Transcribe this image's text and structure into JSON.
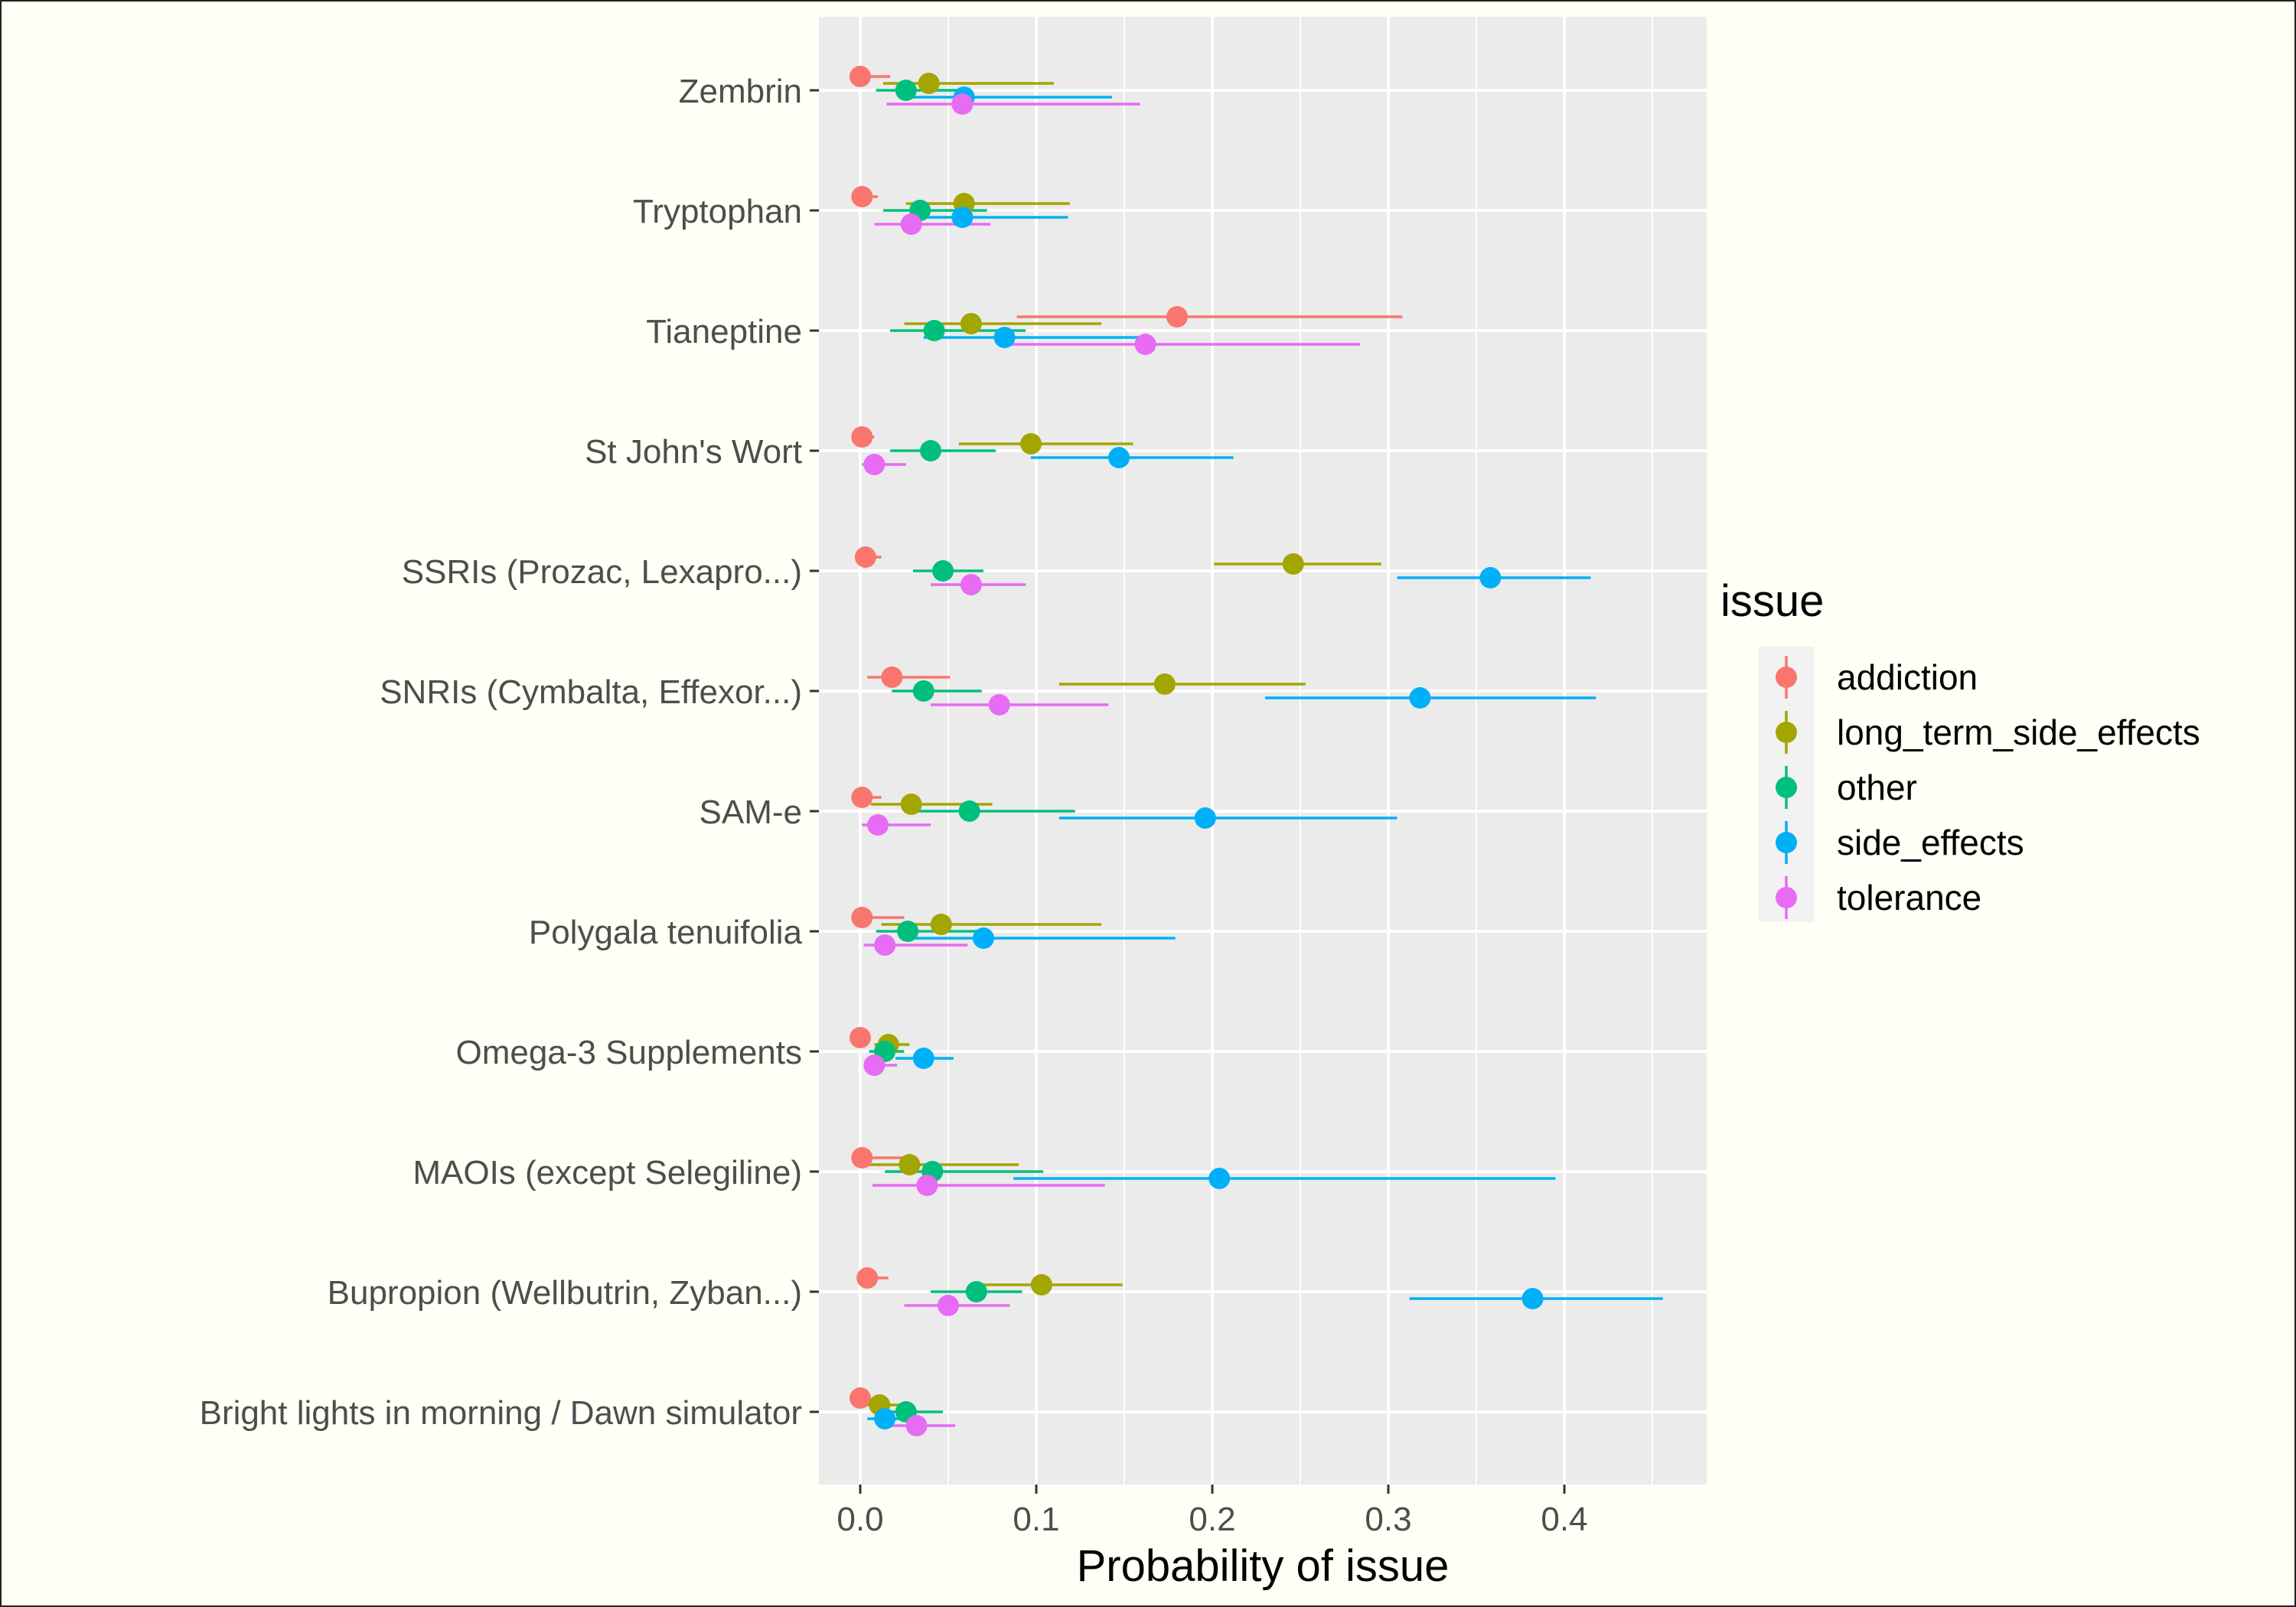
{
  "chart_data": {
    "type": "scatter",
    "title": "",
    "xlabel": "Probability of issue",
    "ylabel": "",
    "xlim": [
      -0.02,
      0.48
    ],
    "x_ticks": [
      0.0,
      0.1,
      0.2,
      0.3,
      0.4
    ],
    "x_tick_labels": [
      "0.0",
      "0.1",
      "0.2",
      "0.3",
      "0.4"
    ],
    "grid": true,
    "legend_position": "right",
    "legend_title": "issue",
    "categories": [
      "Bright lights in morning / Dawn simulator",
      "Bupropion (Wellbutrin, Zyban...)",
      "MAOIs (except Selegiline)",
      "Omega-3 Supplements",
      "Polygala tenuifolia",
      "SAM-e",
      "SNRIs (Cymbalta, Effexor...)",
      "SSRIs (Prozac, Lexapro...)",
      "St John's Wort",
      "Tianeptine",
      "Tryptophan",
      "Zembrin"
    ],
    "series": [
      {
        "name": "addiction",
        "color": "#F8766D",
        "values": [
          0.0,
          0.004,
          0.001,
          0.0,
          0.001,
          0.001,
          0.018,
          0.003,
          0.001,
          0.18,
          0.001,
          0.0
        ],
        "lower": [
          0.0,
          0.0,
          0.0,
          0.0,
          0.0,
          0.0,
          0.004,
          0.0,
          0.0,
          0.089,
          0.0,
          0.0
        ],
        "upper": [
          0.005,
          0.016,
          0.026,
          0.006,
          0.025,
          0.012,
          0.051,
          0.012,
          0.008,
          0.308,
          0.01,
          0.017
        ]
      },
      {
        "name": "long_term_side_effects",
        "color": "#A3A500",
        "values": [
          0.011,
          0.103,
          0.028,
          0.016,
          0.046,
          0.029,
          0.173,
          0.246,
          0.097,
          0.063,
          0.059,
          0.039
        ],
        "lower": [
          0.002,
          0.068,
          0.004,
          0.008,
          0.012,
          0.006,
          0.113,
          0.201,
          0.056,
          0.025,
          0.026,
          0.013
        ],
        "upper": [
          0.025,
          0.149,
          0.09,
          0.028,
          0.137,
          0.075,
          0.253,
          0.296,
          0.155,
          0.137,
          0.119,
          0.11
        ]
      },
      {
        "name": "other",
        "color": "#00BF7D",
        "values": [
          0.026,
          0.066,
          0.041,
          0.014,
          0.027,
          0.062,
          0.036,
          0.047,
          0.04,
          0.042,
          0.034,
          0.026
        ],
        "lower": [
          0.008,
          0.04,
          0.014,
          0.005,
          0.009,
          0.025,
          0.018,
          0.03,
          0.017,
          0.017,
          0.013,
          0.009
        ],
        "upper": [
          0.047,
          0.092,
          0.104,
          0.025,
          0.067,
          0.122,
          0.069,
          0.07,
          0.077,
          0.094,
          0.072,
          0.062
        ]
      },
      {
        "name": "side_effects",
        "color": "#00B0F6",
        "values": [
          0.014,
          0.382,
          0.204,
          0.036,
          0.07,
          0.196,
          0.318,
          0.358,
          0.147,
          0.082,
          0.058,
          0.059
        ],
        "lower": [
          0.004,
          0.312,
          0.087,
          0.02,
          0.028,
          0.113,
          0.23,
          0.305,
          0.097,
          0.036,
          0.025,
          0.023
        ],
        "upper": [
          0.03,
          0.456,
          0.395,
          0.053,
          0.179,
          0.305,
          0.418,
          0.415,
          0.212,
          0.158,
          0.118,
          0.143
        ]
      },
      {
        "name": "tolerance",
        "color": "#E76BF3",
        "values": [
          0.032,
          0.05,
          0.038,
          0.008,
          0.014,
          0.01,
          0.079,
          0.063,
          0.008,
          0.162,
          0.029,
          0.058
        ],
        "lower": [
          0.012,
          0.025,
          0.007,
          0.002,
          0.002,
          0.001,
          0.04,
          0.04,
          0.001,
          0.083,
          0.008,
          0.015
        ],
        "upper": [
          0.054,
          0.085,
          0.139,
          0.021,
          0.061,
          0.04,
          0.141,
          0.094,
          0.026,
          0.284,
          0.074,
          0.159
        ]
      }
    ]
  }
}
